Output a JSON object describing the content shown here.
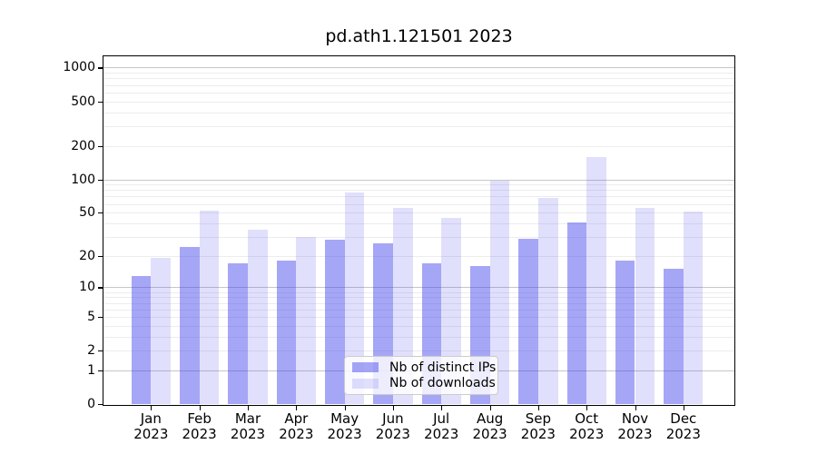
{
  "chart_data": {
    "type": "bar",
    "title": "pd.ath1.121501 2023",
    "scale": "log1p",
    "grid": true,
    "legend_position": "lower center",
    "categories": [
      "Jan",
      "Feb",
      "Mar",
      "Apr",
      "May",
      "Jun",
      "Jul",
      "Aug",
      "Sep",
      "Oct",
      "Nov",
      "Dec"
    ],
    "category_year": "2023",
    "series": [
      {
        "name": "Nb of distinct IPs",
        "color": "rgba(60,60,235,0.46)",
        "values": [
          13,
          24,
          17,
          18,
          28,
          26,
          17,
          16,
          29,
          41,
          18,
          15
        ]
      },
      {
        "name": "Nb of downloads",
        "color": "rgba(60,60,235,0.16)",
        "values": [
          19,
          52,
          35,
          30,
          76,
          55,
          45,
          97,
          68,
          158,
          55,
          51
        ]
      }
    ],
    "yticks": [
      0,
      1,
      2,
      5,
      10,
      20,
      50,
      100,
      200,
      500,
      1000
    ],
    "major_gridlines": [
      1,
      10,
      100,
      1000
    ],
    "minor_gridlines": [
      2,
      3,
      4,
      5,
      6,
      7,
      8,
      9,
      20,
      30,
      40,
      50,
      60,
      70,
      80,
      90,
      200,
      300,
      400,
      500,
      600,
      700,
      800,
      900
    ],
    "ylim": [
      0,
      1286
    ],
    "colors": {
      "spine": "#000000",
      "major_grid": "#c6c6c6",
      "minor_grid": "#ececec",
      "background": "#ffffff"
    }
  }
}
